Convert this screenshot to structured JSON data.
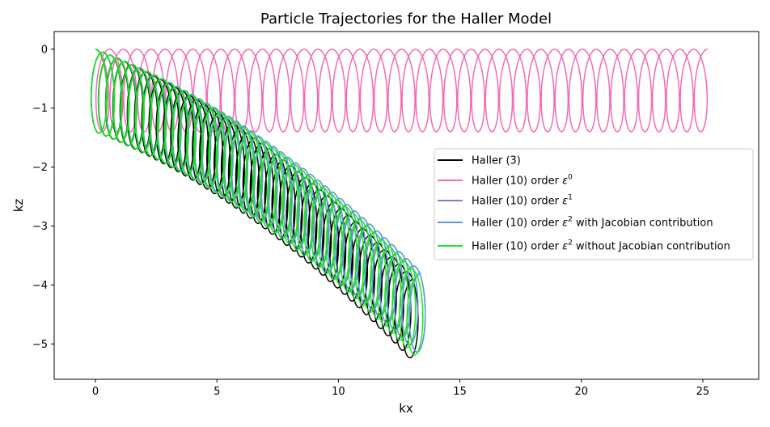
{
  "chart_data": {
    "type": "line",
    "title": "Particle Trajectories for the Haller Model",
    "xlabel": "kx",
    "ylabel": "kz",
    "xlim": [
      -1.7,
      27.3
    ],
    "ylim": [
      -5.6,
      0.3
    ],
    "xticks": [
      0,
      5,
      10,
      15,
      20,
      25
    ],
    "yticks": [
      0,
      -1,
      -2,
      -3,
      -4,
      -5
    ],
    "xtick_labels": [
      "0",
      "5",
      "10",
      "15",
      "20",
      "25"
    ],
    "ytick_labels": [
      "0",
      "−1",
      "−2",
      "−3",
      "−4",
      "−5"
    ],
    "legend_position": "center-right",
    "grid": false,
    "series": [
      {
        "name": "Haller (3)",
        "color": "#000000",
        "loops": 44,
        "end_kx": 13.5,
        "min_kz": -5.3,
        "radius_kx": 0.4,
        "radius_kz": 0.7,
        "curve": "descending"
      },
      {
        "name": "Haller (10) order ε^0",
        "color": "#f26bb5",
        "loops": 44,
        "end_kx": 25.6,
        "min_kz": -1.4,
        "radius_kx": 0.4,
        "radius_kz": 0.7,
        "curve": "flat"
      },
      {
        "name": "Haller (10) order ε^1",
        "color": "#9370db",
        "loops": 44,
        "end_kx": 13.8,
        "min_kz": -5.2,
        "radius_kx": 0.4,
        "radius_kz": 0.7,
        "curve": "descending"
      },
      {
        "name": "Haller (10) order ε^2 with Jacobian contribution",
        "color": "#5b9bd5",
        "loops": 44,
        "end_kx": 13.8,
        "min_kz": -5.2,
        "radius_kx": 0.4,
        "radius_kz": 0.7,
        "curve": "descending"
      },
      {
        "name": "Haller (10) order ε^2 without Jacobian contribution",
        "color": "#19e619",
        "loops": 44,
        "end_kx": 13.7,
        "min_kz": -5.25,
        "radius_kx": 0.4,
        "radius_kz": 0.7,
        "curve": "descending"
      }
    ]
  }
}
